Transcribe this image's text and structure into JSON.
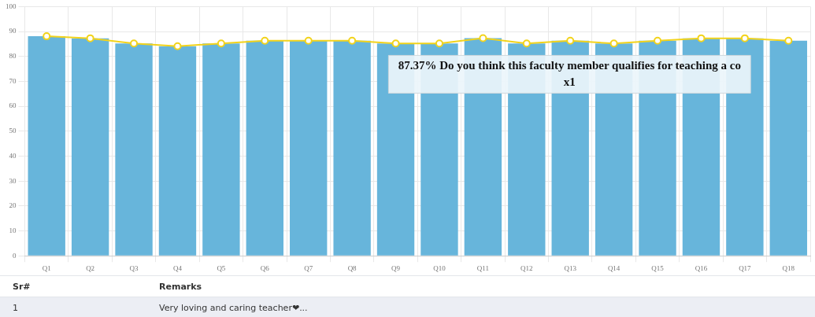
{
  "chart_data": {
    "type": "bar",
    "categories": [
      "Q1",
      "Q2",
      "Q3",
      "Q4",
      "Q5",
      "Q6",
      "Q7",
      "Q8",
      "Q9",
      "Q10",
      "Q11",
      "Q12",
      "Q13",
      "Q14",
      "Q15",
      "Q16",
      "Q17",
      "Q18"
    ],
    "series": [
      {
        "color": "#67b5db",
        "values": [
          88.1,
          87.3,
          85.2,
          84.1,
          85.2,
          86.3,
          86.3,
          86.3,
          85.2,
          85.2,
          87.37,
          85.2,
          86.3,
          85.2,
          86.3,
          87.3,
          87.3,
          86.3
        ]
      },
      {
        "type": "line",
        "color": "#f2d31b",
        "values": [
          88.1,
          87.3,
          85.2,
          84.1,
          85.2,
          86.3,
          86.3,
          86.3,
          85.2,
          85.2,
          87.37,
          85.2,
          86.3,
          85.2,
          86.3,
          87.3,
          87.3,
          86.3
        ]
      }
    ],
    "ylim": [
      0,
      100
    ],
    "yticks": [
      0,
      10,
      20,
      30,
      40,
      50,
      60,
      70,
      80,
      90,
      100
    ],
    "grid": true,
    "legend": false,
    "marker": "circle",
    "annotations": [
      {
        "text": "87.37% Do you think this faculty member qualifies for teaching a co\nx1",
        "x": "Q11",
        "y": 87.37
      },
      "Sr#",
      "Remarks",
      "1",
      "Very loving and caring teacher❤..."
    ]
  }
}
